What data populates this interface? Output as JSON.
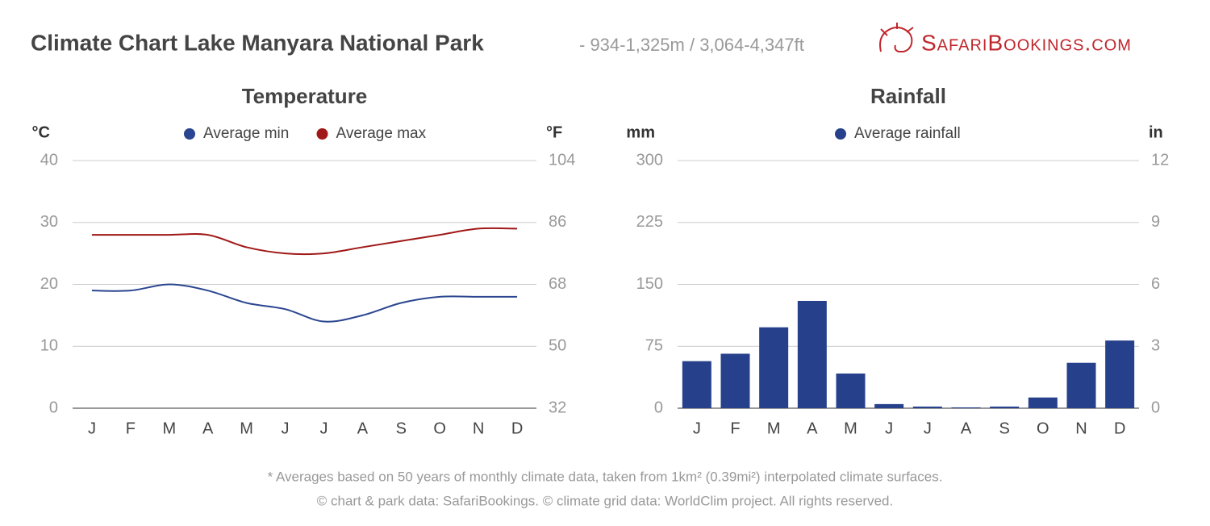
{
  "header": {
    "title": "Climate Chart Lake Manyara National Park",
    "subtitle": "- 934-1,325m / 3,064-4,347ft",
    "logo": "SafariBookings.com"
  },
  "chart_data": [
    {
      "type": "line",
      "title": "Temperature",
      "y_label": "°C",
      "y2_label": "°F",
      "categories": [
        "J",
        "F",
        "M",
        "A",
        "M",
        "J",
        "J",
        "A",
        "S",
        "O",
        "N",
        "D"
      ],
      "series": [
        {
          "name": "Average min",
          "color": "#2b4690",
          "values": [
            19,
            19,
            20,
            19,
            17,
            16,
            14,
            15,
            17,
            18,
            18,
            18
          ]
        },
        {
          "name": "Average max",
          "color": "#a01818",
          "values": [
            28,
            28,
            28,
            28,
            26,
            25,
            25,
            26,
            27,
            28,
            29,
            29
          ]
        }
      ],
      "ylim": [
        0,
        40
      ],
      "yticks": [
        0,
        10,
        20,
        30,
        40
      ],
      "y2lim": [
        32,
        104
      ],
      "y2ticks": [
        32,
        50,
        68,
        86,
        104
      ],
      "grid": true
    },
    {
      "type": "bar",
      "title": "Rainfall",
      "y_label": "mm",
      "y2_label": "in",
      "categories": [
        "J",
        "F",
        "M",
        "A",
        "M",
        "J",
        "J",
        "A",
        "S",
        "O",
        "N",
        "D"
      ],
      "series": [
        {
          "name": "Average rainfall",
          "color": "#27408b",
          "values": [
            57,
            66,
            98,
            130,
            42,
            5,
            2,
            1,
            2,
            13,
            55,
            82
          ]
        }
      ],
      "ylim": [
        0,
        300
      ],
      "yticks": [
        0,
        75,
        150,
        225,
        300
      ],
      "y2lim": [
        0,
        12
      ],
      "y2ticks": [
        0,
        3,
        6,
        9,
        12
      ],
      "grid": true
    }
  ],
  "footer": {
    "note": "* Averages based on 50 years of monthly climate data, taken from 1km² (0.39mi²) interpolated climate surfaces.",
    "credits": "© chart & park data: SafariBookings. © climate grid data: WorldClim project. All rights reserved."
  }
}
